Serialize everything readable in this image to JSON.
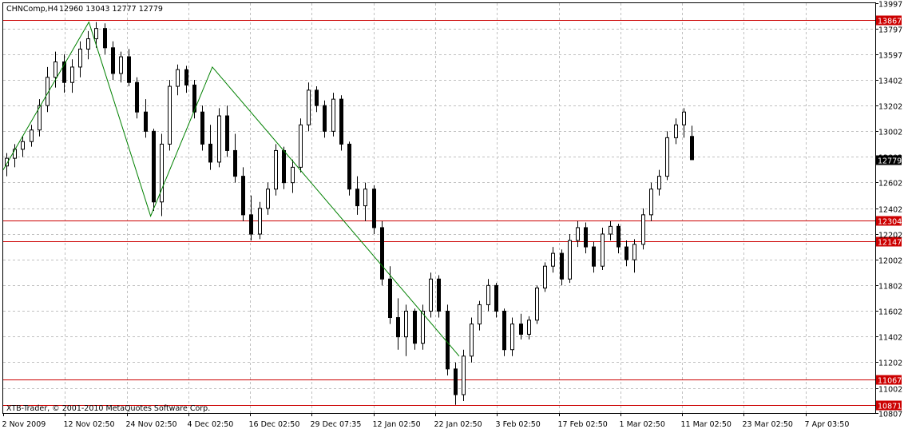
{
  "header": {
    "symbol": "CHNComp,H4",
    "ohlc": "12960 13043 12777 12779"
  },
  "footer": {
    "copyright": "XTB-Trader, © 2001-2010 MetaQuotes Software Corp."
  },
  "chart_data": {
    "type": "candlestick",
    "title": "CHNComp,H4",
    "ylim": [
      10871,
      13997
    ],
    "grid": true,
    "y_ticks": [
      "13997",
      "13797",
      "13597",
      "13402",
      "13202",
      "13002",
      "12802",
      "12602",
      "12402",
      "12202",
      "12002",
      "11802",
      "11602",
      "11402",
      "11202",
      "11002",
      "10807"
    ],
    "x_ticks": [
      "2 Nov 2009",
      "12 Nov 02:50",
      "24 Nov 02:50",
      "4 Dec 02:50",
      "16 Dec 02:50",
      "29 Dec 07:35",
      "12 Jan 02:50",
      "22 Jan 02:50",
      "3 Feb 02:50",
      "17 Feb 02:50",
      "1 Mar 02:50",
      "11 Mar 02:50",
      "23 Mar 02:50",
      "7 Apr 03:50"
    ],
    "horizontal_levels": [
      "13867",
      "12304",
      "12147",
      "11067",
      "10871"
    ],
    "current_price": "12779",
    "zigzag": [
      {
        "x": "2 Nov 2009",
        "y": 12700
      },
      {
        "x": "12 Nov 02:50",
        "y": 13850
      },
      {
        "x": "24 Nov 02:50",
        "y": 12340
      },
      {
        "x": "4 Dec 02:50",
        "y": 13500
      },
      {
        "x": "22 Jan 02:50",
        "y": 11250
      }
    ],
    "candles": [
      {
        "o": 12730,
        "h": 12830,
        "l": 12650,
        "c": 12790
      },
      {
        "o": 12790,
        "h": 12900,
        "l": 12720,
        "c": 12860
      },
      {
        "o": 12860,
        "h": 12960,
        "l": 12800,
        "c": 12920
      },
      {
        "o": 12920,
        "h": 13050,
        "l": 12880,
        "c": 13010
      },
      {
        "o": 13010,
        "h": 13250,
        "l": 12960,
        "c": 13200
      },
      {
        "o": 13200,
        "h": 13500,
        "l": 13150,
        "c": 13420
      },
      {
        "o": 13420,
        "h": 13620,
        "l": 13340,
        "c": 13540
      },
      {
        "o": 13540,
        "h": 13600,
        "l": 13300,
        "c": 13380
      },
      {
        "o": 13380,
        "h": 13560,
        "l": 13300,
        "c": 13500
      },
      {
        "o": 13500,
        "h": 13700,
        "l": 13420,
        "c": 13640
      },
      {
        "o": 13640,
        "h": 13780,
        "l": 13560,
        "c": 13720
      },
      {
        "o": 13720,
        "h": 13850,
        "l": 13650,
        "c": 13800
      },
      {
        "o": 13800,
        "h": 13840,
        "l": 13600,
        "c": 13650
      },
      {
        "o": 13650,
        "h": 13700,
        "l": 13400,
        "c": 13450
      },
      {
        "o": 13450,
        "h": 13620,
        "l": 13380,
        "c": 13580
      },
      {
        "o": 13580,
        "h": 13640,
        "l": 13350,
        "c": 13380
      },
      {
        "o": 13380,
        "h": 13420,
        "l": 13100,
        "c": 13150
      },
      {
        "o": 13150,
        "h": 13250,
        "l": 12950,
        "c": 13000
      },
      {
        "o": 13000,
        "h": 13020,
        "l": 12380,
        "c": 12450
      },
      {
        "o": 12450,
        "h": 12980,
        "l": 12340,
        "c": 12900
      },
      {
        "o": 12900,
        "h": 13400,
        "l": 12850,
        "c": 13350
      },
      {
        "o": 13350,
        "h": 13520,
        "l": 13280,
        "c": 13480
      },
      {
        "o": 13480,
        "h": 13510,
        "l": 13300,
        "c": 13360
      },
      {
        "o": 13360,
        "h": 13400,
        "l": 13100,
        "c": 13150
      },
      {
        "o": 13150,
        "h": 13200,
        "l": 12850,
        "c": 12900
      },
      {
        "o": 12900,
        "h": 13050,
        "l": 12700,
        "c": 12760
      },
      {
        "o": 12760,
        "h": 13180,
        "l": 12720,
        "c": 13120
      },
      {
        "o": 13120,
        "h": 13200,
        "l": 12800,
        "c": 12850
      },
      {
        "o": 12850,
        "h": 12980,
        "l": 12600,
        "c": 12650
      },
      {
        "o": 12650,
        "h": 12720,
        "l": 12300,
        "c": 12350
      },
      {
        "o": 12350,
        "h": 12500,
        "l": 12150,
        "c": 12200
      },
      {
        "o": 12200,
        "h": 12450,
        "l": 12160,
        "c": 12400
      },
      {
        "o": 12400,
        "h": 12600,
        "l": 12350,
        "c": 12550
      },
      {
        "o": 12550,
        "h": 12900,
        "l": 12500,
        "c": 12850
      },
      {
        "o": 12850,
        "h": 12880,
        "l": 12550,
        "c": 12600
      },
      {
        "o": 12600,
        "h": 12780,
        "l": 12520,
        "c": 12720
      },
      {
        "o": 12720,
        "h": 13100,
        "l": 12680,
        "c": 13050
      },
      {
        "o": 13050,
        "h": 13380,
        "l": 13000,
        "c": 13320
      },
      {
        "o": 13320,
        "h": 13350,
        "l": 13150,
        "c": 13200
      },
      {
        "o": 13200,
        "h": 13240,
        "l": 12950,
        "c": 13000
      },
      {
        "o": 13000,
        "h": 13300,
        "l": 12960,
        "c": 13250
      },
      {
        "o": 13250,
        "h": 13280,
        "l": 12850,
        "c": 12900
      },
      {
        "o": 12900,
        "h": 12920,
        "l": 12500,
        "c": 12550
      },
      {
        "o": 12550,
        "h": 12650,
        "l": 12350,
        "c": 12420
      },
      {
        "o": 12420,
        "h": 12600,
        "l": 12300,
        "c": 12550
      },
      {
        "o": 12550,
        "h": 12580,
        "l": 12200,
        "c": 12250
      },
      {
        "o": 12250,
        "h": 12300,
        "l": 11800,
        "c": 11850
      },
      {
        "o": 11850,
        "h": 11950,
        "l": 11500,
        "c": 11550
      },
      {
        "o": 11550,
        "h": 11700,
        "l": 11300,
        "c": 11400
      },
      {
        "o": 11400,
        "h": 11650,
        "l": 11250,
        "c": 11600
      },
      {
        "o": 11600,
        "h": 11620,
        "l": 11300,
        "c": 11350
      },
      {
        "o": 11350,
        "h": 11650,
        "l": 11300,
        "c": 11600
      },
      {
        "o": 11600,
        "h": 11900,
        "l": 11550,
        "c": 11850
      },
      {
        "o": 11850,
        "h": 11880,
        "l": 11550,
        "c": 11600
      },
      {
        "o": 11600,
        "h": 11650,
        "l": 11100,
        "c": 11150
      },
      {
        "o": 11150,
        "h": 11200,
        "l": 10871,
        "c": 10950
      },
      {
        "o": 10950,
        "h": 11300,
        "l": 10900,
        "c": 11250
      },
      {
        "o": 11250,
        "h": 11550,
        "l": 11200,
        "c": 11500
      },
      {
        "o": 11500,
        "h": 11680,
        "l": 11450,
        "c": 11650
      },
      {
        "o": 11650,
        "h": 11850,
        "l": 11600,
        "c": 11800
      },
      {
        "o": 11800,
        "h": 11820,
        "l": 11550,
        "c": 11600
      },
      {
        "o": 11600,
        "h": 11620,
        "l": 11250,
        "c": 11300
      },
      {
        "o": 11300,
        "h": 11550,
        "l": 11250,
        "c": 11500
      },
      {
        "o": 11500,
        "h": 11580,
        "l": 11380,
        "c": 11420
      },
      {
        "o": 11420,
        "h": 11560,
        "l": 11380,
        "c": 11530
      },
      {
        "o": 11530,
        "h": 11800,
        "l": 11500,
        "c": 11780
      },
      {
        "o": 11780,
        "h": 11980,
        "l": 11750,
        "c": 11950
      },
      {
        "o": 11950,
        "h": 12100,
        "l": 11900,
        "c": 12050
      },
      {
        "o": 12050,
        "h": 12080,
        "l": 11800,
        "c": 11850
      },
      {
        "o": 11850,
        "h": 12200,
        "l": 11820,
        "c": 12150
      },
      {
        "o": 12150,
        "h": 12300,
        "l": 12100,
        "c": 12250
      },
      {
        "o": 12250,
        "h": 12290,
        "l": 12050,
        "c": 12100
      },
      {
        "o": 12100,
        "h": 12140,
        "l": 11900,
        "c": 11950
      },
      {
        "o": 11950,
        "h": 12250,
        "l": 11920,
        "c": 12200
      },
      {
        "o": 12200,
        "h": 12300,
        "l": 12150,
        "c": 12260
      },
      {
        "o": 12260,
        "h": 12280,
        "l": 12050,
        "c": 12100
      },
      {
        "o": 12100,
        "h": 12150,
        "l": 11950,
        "c": 12000
      },
      {
        "o": 12000,
        "h": 12160,
        "l": 11900,
        "c": 12120
      },
      {
        "o": 12120,
        "h": 12400,
        "l": 12080,
        "c": 12350
      },
      {
        "o": 12350,
        "h": 12600,
        "l": 12300,
        "c": 12550
      },
      {
        "o": 12550,
        "h": 12700,
        "l": 12500,
        "c": 12650
      },
      {
        "o": 12650,
        "h": 13000,
        "l": 12620,
        "c": 12950
      },
      {
        "o": 12950,
        "h": 13100,
        "l": 12900,
        "c": 13050
      },
      {
        "o": 13050,
        "h": 13180,
        "l": 12950,
        "c": 13150
      },
      {
        "o": 12960,
        "h": 13043,
        "l": 12777,
        "c": 12779
      }
    ]
  }
}
